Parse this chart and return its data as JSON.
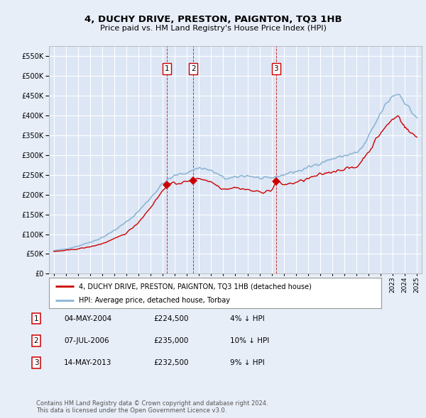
{
  "title": "4, DUCHY DRIVE, PRESTON, PAIGNTON, TQ3 1HB",
  "subtitle": "Price paid vs. HM Land Registry's House Price Index (HPI)",
  "background_color": "#e8eef8",
  "plot_bg_color": "#dce6f5",
  "grid_color": "#ffffff",
  "sale_color": "#cc0000",
  "hpi_color": "#8ab4d4",
  "sale_dates_num": [
    2004.34,
    2006.52,
    2013.37
  ],
  "sale_prices": [
    224500,
    235000,
    232500
  ],
  "sale_labels": [
    "1",
    "2",
    "3"
  ],
  "legend_sale": "4, DUCHY DRIVE, PRESTON, PAIGNTON, TQ3 1HB (detached house)",
  "legend_hpi": "HPI: Average price, detached house, Torbay",
  "table_entries": [
    {
      "num": "1",
      "date": "04-MAY-2004",
      "price": "£224,500",
      "pct": "4% ↓ HPI"
    },
    {
      "num": "2",
      "date": "07-JUL-2006",
      "price": "£235,000",
      "pct": "10% ↓ HPI"
    },
    {
      "num": "3",
      "date": "14-MAY-2013",
      "price": "£232,500",
      "pct": "9% ↓ HPI"
    }
  ],
  "footer": "Contains HM Land Registry data © Crown copyright and database right 2024.\nThis data is licensed under the Open Government Licence v3.0.",
  "ylim": [
    0,
    575000
  ],
  "yticks": [
    0,
    50000,
    100000,
    150000,
    200000,
    250000,
    300000,
    350000,
    400000,
    450000,
    500000,
    550000
  ],
  "xlim_start": 1994.6,
  "xlim_end": 2025.4,
  "xticks": [
    1995,
    1996,
    1997,
    1998,
    1999,
    2000,
    2001,
    2002,
    2003,
    2004,
    2005,
    2006,
    2007,
    2008,
    2009,
    2010,
    2011,
    2012,
    2013,
    2014,
    2015,
    2016,
    2017,
    2018,
    2019,
    2020,
    2021,
    2022,
    2023,
    2024,
    2025
  ]
}
